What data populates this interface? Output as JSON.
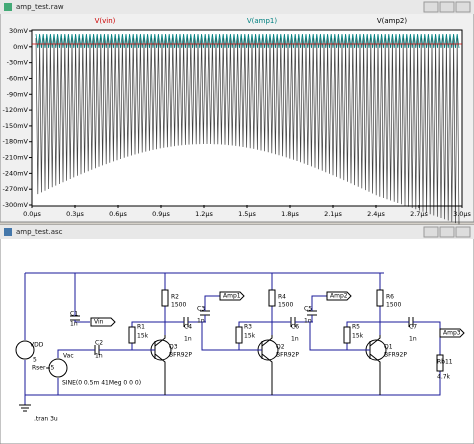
{
  "waveform_window": {
    "title": "amp_test.raw",
    "traces": [
      {
        "name": "V(vin)",
        "color": "#cc0000"
      },
      {
        "name": "V(amp1)",
        "color": "#008080"
      },
      {
        "name": "V(amp2)",
        "color": "#000000"
      }
    ],
    "ylim": [
      -300,
      30
    ],
    "yticks": [
      {
        "value": 30,
        "label": "30mV"
      },
      {
        "value": 0,
        "label": "0mV"
      },
      {
        "value": -30,
        "label": "-30mV"
      },
      {
        "value": -60,
        "label": "-60mV"
      },
      {
        "value": -90,
        "label": "-90mV"
      },
      {
        "value": -120,
        "label": "-120mV"
      },
      {
        "value": -150,
        "label": "-150mV"
      },
      {
        "value": -180,
        "label": "-180mV"
      },
      {
        "value": -210,
        "label": "-210mV"
      },
      {
        "value": -240,
        "label": "-240mV"
      },
      {
        "value": -270,
        "label": "-270mV"
      },
      {
        "value": -300,
        "label": "-300mV"
      }
    ],
    "xlim": [
      0,
      3
    ],
    "xticks": [
      {
        "value": 0,
        "label": "0.0µs"
      },
      {
        "value": 0.3,
        "label": "0.3µs"
      },
      {
        "value": 0.6,
        "label": "0.6µs"
      },
      {
        "value": 0.9,
        "label": "0.9µs"
      },
      {
        "value": 1.2,
        "label": "1.2µs"
      },
      {
        "value": 1.5,
        "label": "1.5µs"
      },
      {
        "value": 1.8,
        "label": "1.8µs"
      },
      {
        "value": 2.1,
        "label": "2.1µs"
      },
      {
        "value": 2.4,
        "label": "2.4µs"
      },
      {
        "value": 2.7,
        "label": "2.7µs"
      },
      {
        "value": 3,
        "label": "3.0µs"
      }
    ]
  },
  "schematic_window": {
    "title": "amp_test.asc",
    "source": {
      "name": "VDD",
      "value": "5",
      "rser": "Rser=5"
    },
    "ac_source": {
      "name": "Vac",
      "spec": "SINE(0 0.5m 41Meg 0 0 0)"
    },
    "directive": ".tran 3u",
    "flags": [
      "Vin",
      "Amp1",
      "Amp2",
      "Amp3"
    ],
    "stages": [
      {
        "bias": [
          "R1",
          "15k"
        ],
        "load": [
          "R2",
          "1500"
        ],
        "transistor": [
          "Q3",
          "BFR92P"
        ],
        "in_cap": [
          "C2",
          "1n"
        ],
        "out_cap": [
          "C4",
          "1n"
        ],
        "tap_cap": [
          "C1",
          "1n"
        ]
      },
      {
        "bias": [
          "R3",
          "15k"
        ],
        "load": [
          "R4",
          "1500"
        ],
        "transistor": [
          "Q2",
          "BFR92P"
        ],
        "in_cap": [
          "C3",
          "1n"
        ],
        "out_cap": [
          "C6",
          "1n"
        ],
        "tap_cap": [
          "C3",
          "1n"
        ]
      },
      {
        "bias": [
          "R5",
          "15k"
        ],
        "load": [
          "R6",
          "1500"
        ],
        "transistor": [
          "Q1",
          "BFR92P"
        ],
        "in_cap": [
          "C5",
          "1n"
        ],
        "out_cap": [
          "C7",
          "1n"
        ],
        "tap_cap": [
          "C5",
          "1n"
        ]
      }
    ],
    "load": [
      "Rb11",
      "4.7k"
    ]
  }
}
